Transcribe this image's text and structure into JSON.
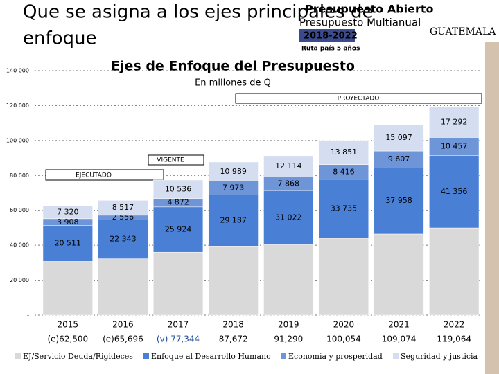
{
  "slide": {
    "title_line1": "Que se asigna a los ejes principales de",
    "title_line2": "enfoque",
    "logo": {
      "line1": "Presupuesto Abierto",
      "line2": "Presupuesto Multianual",
      "years": "2018-2022",
      "tagline": "Ruta país 5 años",
      "country": "GUATEMALA"
    }
  },
  "chart_data": {
    "type": "stacked_bar",
    "title": "Ejes de Enfoque del Presupuesto",
    "subtitle": "En millones de Q",
    "categories": [
      "2015",
      "2016",
      "2017",
      "2018",
      "2019",
      "2020",
      "2021",
      "2022"
    ],
    "series": [
      {
        "name": "EJ/Servicio Deuda/Rigideces",
        "color": "#d9d9d9",
        "values": [
          30761,
          32280,
          36012,
          39523,
          40286,
          44052,
          46412,
          49959
        ]
      },
      {
        "name": "Enfoque al Desarrollo Humano",
        "color": "#4a7fd6",
        "values": [
          20511,
          22343,
          25924,
          29187,
          31022,
          33735,
          37958,
          41356
        ],
        "value_labels": [
          "20 511",
          "22 343",
          "25 924",
          "29 187",
          "31 022",
          "33 735",
          "37 958",
          "41 356"
        ]
      },
      {
        "name": "Economía y prosperidad",
        "color": "#6d95d8",
        "values": [
          3908,
          2556,
          4872,
          7973,
          7868,
          8416,
          9607,
          10457
        ],
        "value_labels": [
          "3 908",
          "2 556",
          "4 872",
          "7 973",
          "7 868",
          "8 416",
          "9 607",
          "10 457"
        ]
      },
      {
        "name": "Seguridad y justicia",
        "color": "#d5def0",
        "values": [
          7320,
          8517,
          10536,
          10989,
          12114,
          13851,
          15097,
          17292
        ],
        "value_labels": [
          "7 320",
          "8 517",
          "10 536",
          "10 989",
          "12 114",
          "13 851",
          "15 097",
          "17 292"
        ]
      }
    ],
    "total_labels": [
      "(e)62,500",
      "(e)65,696",
      "(v) 77,344",
      "87,672",
      "91,290",
      "100,054",
      "109,074",
      "119,064"
    ],
    "total_label_colors": [
      "#000000",
      "#000000",
      "#1f4e9c",
      "#000000",
      "#000000",
      "#000000",
      "#000000",
      "#000000"
    ],
    "annotations": {
      "executed": "EJECUTADO",
      "current": "VIGENTE",
      "projected": "PROYECTADO"
    },
    "ylim": [
      0,
      140000
    ],
    "yticks": [
      {
        "value": 0,
        "label": "-"
      },
      {
        "value": 20000,
        "label": "20 000"
      },
      {
        "value": 40000,
        "label": "40 000"
      },
      {
        "value": 60000,
        "label": "60 000"
      },
      {
        "value": 80000,
        "label": "80 000"
      },
      {
        "value": 100000,
        "label": "100 000"
      },
      {
        "value": 120000,
        "label": "120 000"
      },
      {
        "value": 140000,
        "label": "140 000"
      }
    ],
    "grid": true,
    "legend": "bottom"
  }
}
